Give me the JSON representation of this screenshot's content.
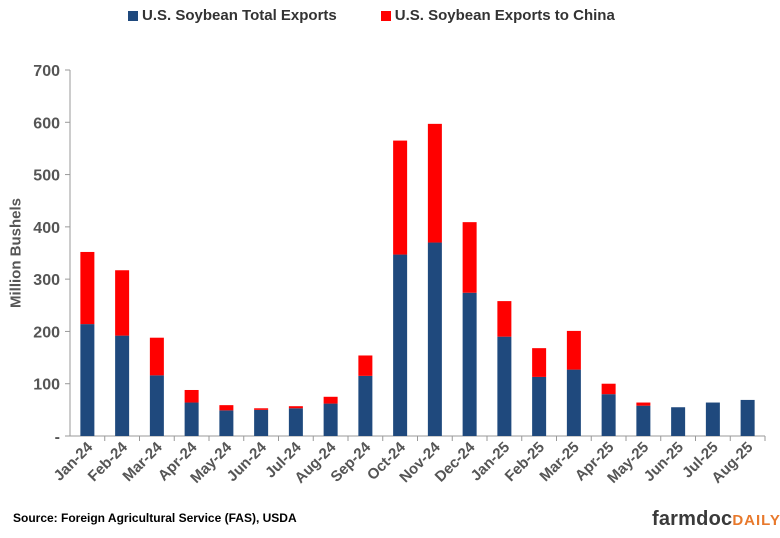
{
  "chart_data": {
    "type": "bar",
    "stacked": true,
    "categories": [
      "Jan-24",
      "Feb-24",
      "Mar-24",
      "Apr-24",
      "May-24",
      "Jun-24",
      "Jul-24",
      "Aug-24",
      "Sep-24",
      "Oct-24",
      "Nov-24",
      "Dec-24",
      "Jan-25",
      "Feb-25",
      "Mar-25",
      "Apr-25",
      "May-25",
      "Jun-25",
      "Jul-25",
      "Aug-25"
    ],
    "series": [
      {
        "name": "U.S. Soybean Total Exports",
        "color": "#1f497d",
        "values": [
          214,
          192,
          116,
          64,
          49,
          50,
          53,
          62,
          115,
          347,
          370,
          274,
          190,
          113,
          127,
          80,
          58,
          55,
          64,
          69
        ]
      },
      {
        "name": "U.S. Soybean Exports to China",
        "color": "#ff0000",
        "values": [
          138,
          125,
          72,
          24,
          10,
          3,
          4,
          13,
          39,
          218,
          227,
          135,
          68,
          55,
          74,
          20,
          6,
          0,
          0,
          0
        ]
      }
    ],
    "ylabel": "Million Bushels",
    "ylim": [
      0,
      700
    ],
    "yticks": [
      0,
      100,
      200,
      300,
      400,
      500,
      600,
      700
    ],
    "ytick_labels": [
      "-",
      "100",
      "200",
      "300",
      "400",
      "500",
      "600",
      "700"
    ],
    "grid": false,
    "legend_position": "top"
  },
  "source_text": "Source: Foreign Agricultural Service (FAS), USDA",
  "logo": {
    "main": "farmdoc",
    "accent": "DAILY"
  }
}
